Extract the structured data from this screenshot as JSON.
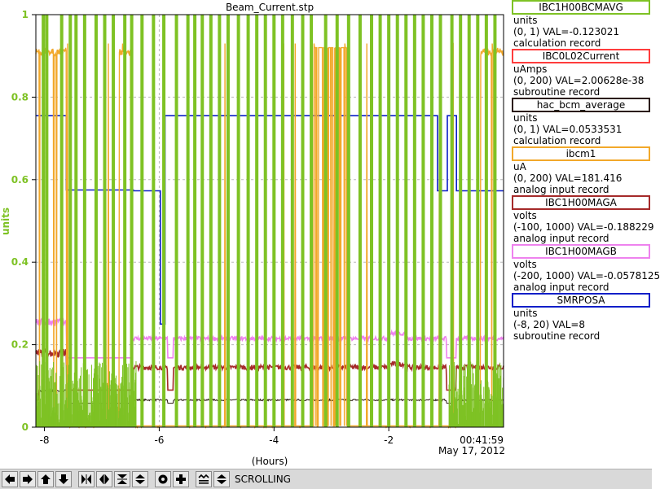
{
  "chart_data": {
    "type": "line",
    "title": "Beam_Current.stp",
    "xlabel": "(Hours)",
    "ylabel": "units",
    "xlim": [
      -8.15,
      0
    ],
    "ylim": [
      0,
      1
    ],
    "x_ticks": [
      "-8",
      "-6",
      "-4",
      "-2"
    ],
    "x_tick_values": [
      -8,
      -6,
      -4,
      -2
    ],
    "y_ticks": [
      "0",
      "0.2",
      "0.4",
      "0.6",
      "0.8",
      "1"
    ],
    "y_tick_values": [
      0,
      0.2,
      0.4,
      0.6,
      0.8,
      1
    ],
    "end_time": "00:41:59",
    "end_date": "May 17, 2012",
    "grid": true,
    "legend_position": "right",
    "series": [
      {
        "name": "IBC1H00BCMAVG",
        "color": "#7ec224"
      },
      {
        "name": "IBC0L02Current",
        "color": "#ff3c3c"
      },
      {
        "name": "hac_bcm_average",
        "color": "#2a1a12"
      },
      {
        "name": "ibcm1",
        "color": "#f2a82a"
      },
      {
        "name": "IBC1H00MAGA",
        "color": "#a52a2a"
      },
      {
        "name": "IBC1H00MAGB",
        "color": "#ee82ee"
      },
      {
        "name": "SMRPOSA",
        "color": "#0a1ec8"
      }
    ]
  },
  "legend": [
    {
      "name": "IBC1H00BCMAVG",
      "color": "#7ec224",
      "lines": [
        "units",
        "(0, 1) VAL=-0.123021",
        "calculation record"
      ]
    },
    {
      "name": "IBC0L02Current",
      "color": "#ff3c3c",
      "lines": [
        "uAmps",
        "(0, 200) VAL=2.00628e-38",
        "subroutine record"
      ]
    },
    {
      "name": "hac_bcm_average",
      "color": "#2a1a12",
      "lines": [
        "units",
        "(0, 1) VAL=0.0533531",
        "calculation record"
      ]
    },
    {
      "name": "ibcm1",
      "color": "#f2a82a",
      "lines": [
        "uA",
        "(0, 200) VAL=181.416",
        "analog input record"
      ]
    },
    {
      "name": "IBC1H00MAGA",
      "color": "#a52a2a",
      "lines": [
        "volts",
        "(-100, 1000) VAL=-0.188229",
        "analog input record"
      ]
    },
    {
      "name": "IBC1H00MAGB",
      "color": "#ee82ee",
      "lines": [
        "volts",
        "(-200, 1000) VAL=-0.0578125",
        "analog input record"
      ]
    },
    {
      "name": "SMRPOSA",
      "color": "#0a1ec8",
      "lines": [
        "units",
        "(-8, 20) VAL=8",
        "subroutine record"
      ]
    }
  ],
  "toolbar": {
    "buttons": [
      {
        "name": "pan-left-button",
        "icon": "arrow-left-icon"
      },
      {
        "name": "pan-right-button",
        "icon": "arrow-right-icon"
      },
      {
        "name": "pan-up-button",
        "icon": "arrow-up-icon"
      },
      {
        "name": "pan-down-button",
        "icon": "arrow-down-icon"
      },
      {
        "name": "zoom-in-x-button",
        "icon": "zoom-in-x-icon"
      },
      {
        "name": "zoom-out-x-button",
        "icon": "zoom-out-x-icon"
      },
      {
        "name": "zoom-in-y-button",
        "icon": "zoom-in-y-icon"
      },
      {
        "name": "zoom-out-y-button",
        "icon": "zoom-out-y-icon"
      },
      {
        "name": "auto-scale-button",
        "icon": "circle-dot-icon"
      },
      {
        "name": "crosshair-button",
        "icon": "plus-icon"
      },
      {
        "name": "config-button",
        "icon": "config-icon"
      },
      {
        "name": "scroll-mode-button",
        "icon": "scroll-mode-icon"
      }
    ],
    "status": "SCROLLING"
  }
}
